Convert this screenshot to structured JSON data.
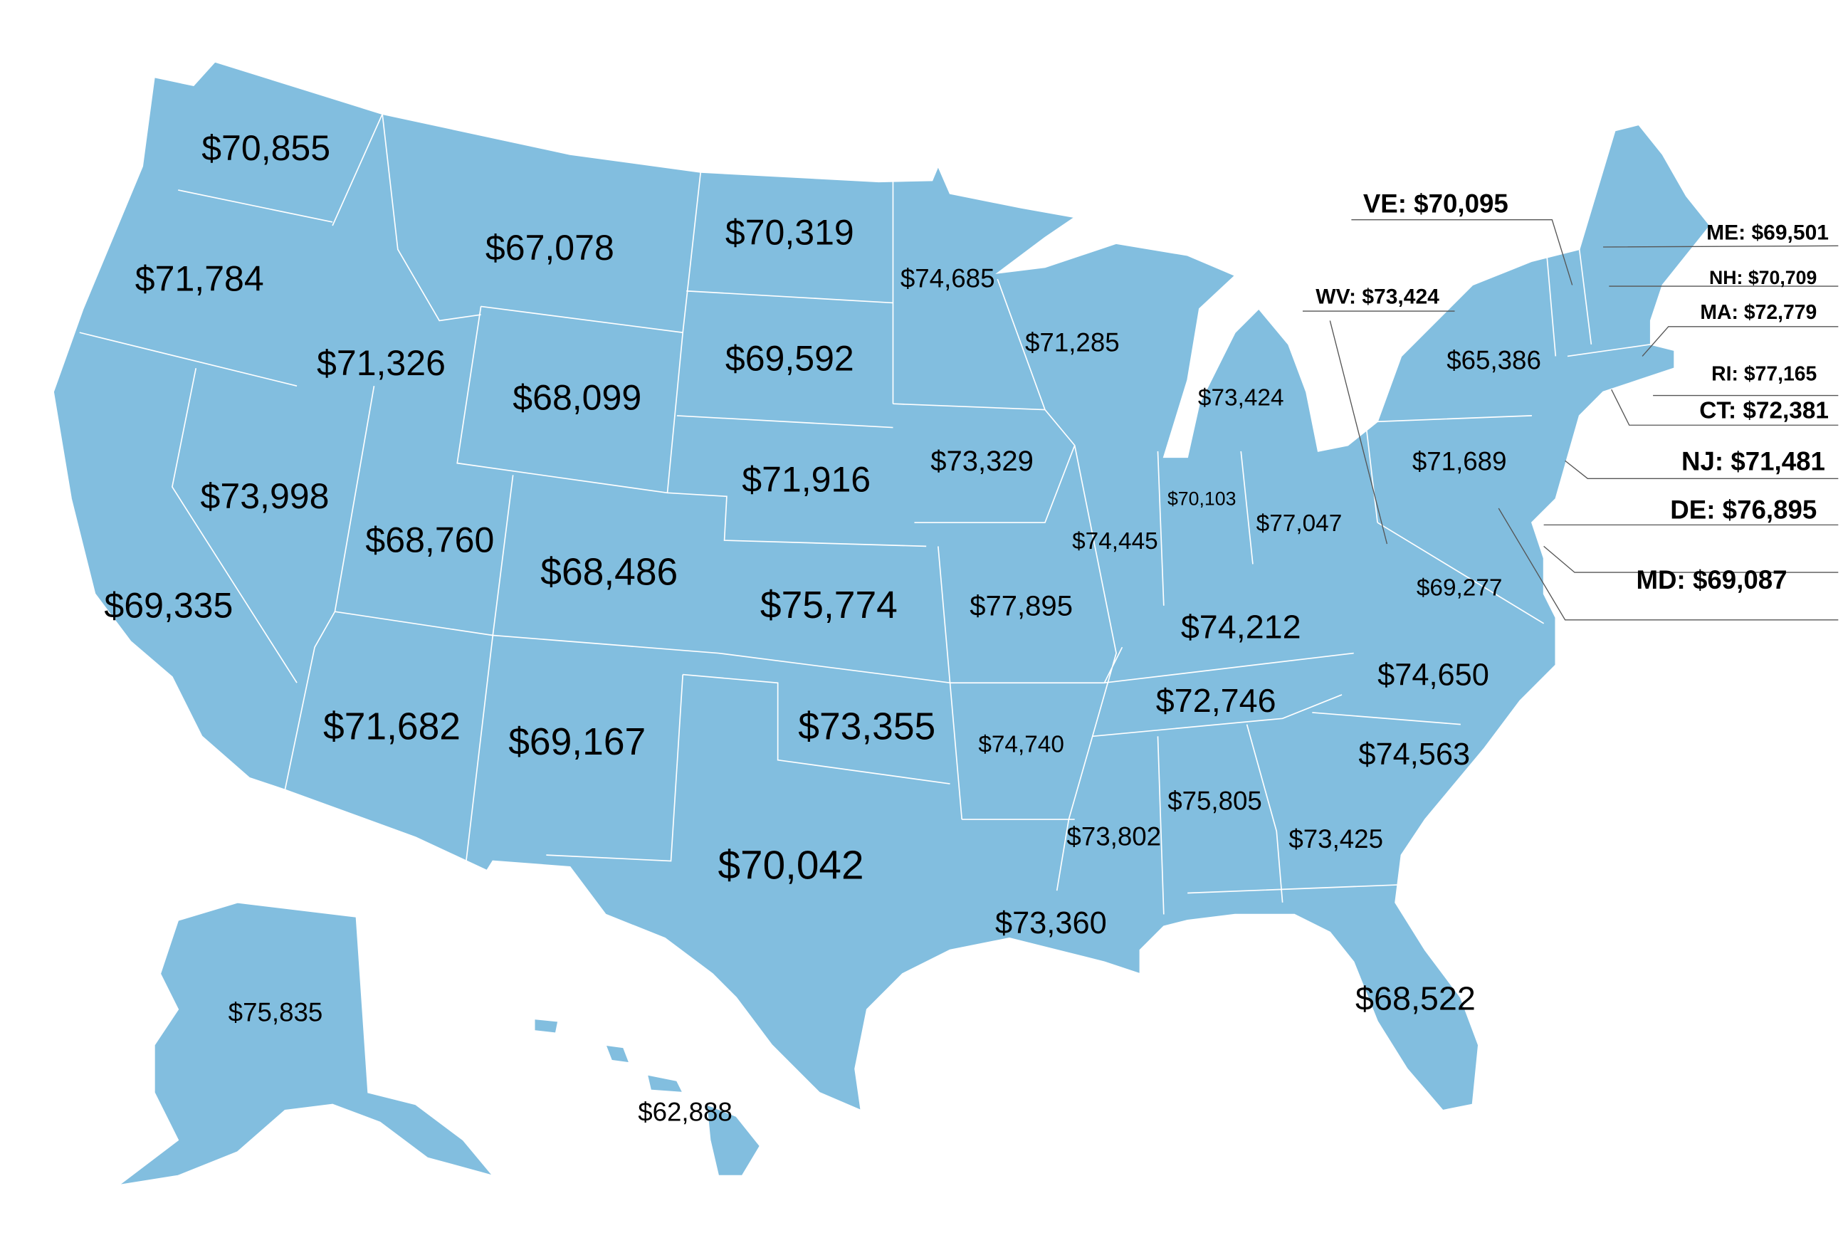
{
  "labels": [
    "$70,855",
    "$71,784",
    "$67,078",
    "$70,319",
    "$74,685",
    "$71,326",
    "$68,099",
    "$69,592",
    "$71,285",
    "$73,424",
    "$65,386",
    "$73,998",
    "$68,760",
    "$71,916",
    "$73,329",
    "$70,103",
    "$77,047",
    "$71,689",
    "$74,445",
    "$69,335",
    "$68,486",
    "$75,774",
    "$77,895",
    "$74,212",
    "$69,277",
    "$71,682",
    "$69,167",
    "$73,355",
    "$74,740",
    "$72,746",
    "$74,650",
    "$74,563",
    "$73,802",
    "$75,805",
    "$73,425",
    "$70,042",
    "$73,360",
    "$68,522",
    "$75,835",
    "$62,888"
  ],
  "callouts": [
    "VE: $70,095",
    "WV: $73,424",
    "ME: $69,501",
    "NH: $70,709",
    "MA: $72,779",
    "RI: $77,165",
    "CT: $72,381",
    "NJ: $71,481",
    "DE: $76,895",
    "MD: $69,087"
  ]
}
